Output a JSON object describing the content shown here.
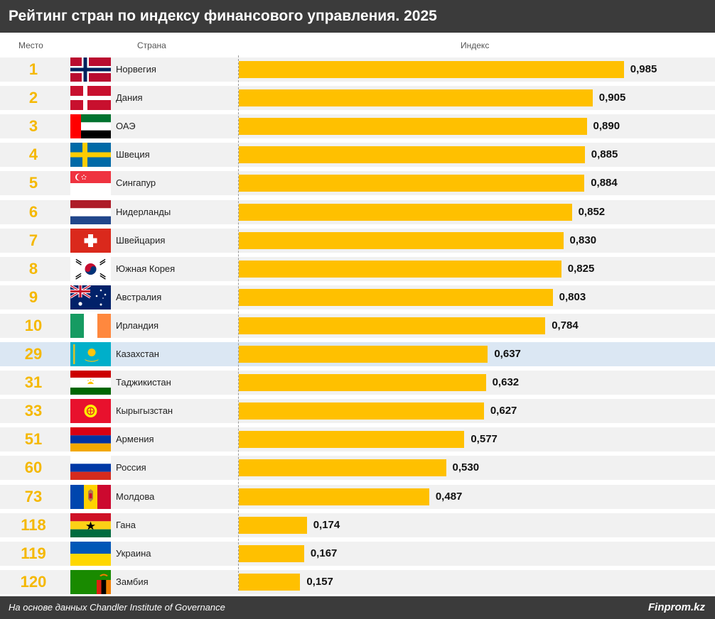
{
  "header": {
    "title": "Рейтинг стран по индексу финансового управления. 2025"
  },
  "columns": {
    "rank": "Место",
    "country": "Страна",
    "index": "Индекс"
  },
  "footer": {
    "source": "На основе данных Chandler Institute of Governance",
    "brand": "Finprom.kz"
  },
  "colors": {
    "bar": "#ffc000",
    "rank": "#f5b800",
    "row": "#f1f1f1",
    "highlight_row": "#dbe7f3",
    "header": "#3b3b3b"
  },
  "chart_data": {
    "type": "bar",
    "orientation": "horizontal",
    "title": "Рейтинг стран по индексу финансового управления. 2025",
    "xlabel": "Индекс",
    "xlim": [
      0,
      1
    ],
    "highlight": "Казахстан",
    "rows": [
      {
        "rank": "1",
        "country": "Норвегия",
        "flag": "norway",
        "value": 0.985,
        "label": "0,985"
      },
      {
        "rank": "2",
        "country": "Дания",
        "flag": "denmark",
        "value": 0.905,
        "label": "0,905"
      },
      {
        "rank": "3",
        "country": "ОАЭ",
        "flag": "uae",
        "value": 0.89,
        "label": "0,890"
      },
      {
        "rank": "4",
        "country": "Швеция",
        "flag": "sweden",
        "value": 0.885,
        "label": "0,885"
      },
      {
        "rank": "5",
        "country": "Сингапур",
        "flag": "singapore",
        "value": 0.884,
        "label": "0,884"
      },
      {
        "rank": "6",
        "country": "Нидерланды",
        "flag": "netherlands",
        "value": 0.852,
        "label": "0,852"
      },
      {
        "rank": "7",
        "country": "Швейцария",
        "flag": "switzerland",
        "value": 0.83,
        "label": "0,830"
      },
      {
        "rank": "8",
        "country": "Южная Корея",
        "flag": "south-korea",
        "value": 0.825,
        "label": "0,825"
      },
      {
        "rank": "9",
        "country": "Австралия",
        "flag": "australia",
        "value": 0.803,
        "label": "0,803"
      },
      {
        "rank": "10",
        "country": "Ирландия",
        "flag": "ireland",
        "value": 0.784,
        "label": "0,784"
      },
      {
        "rank": "29",
        "country": "Казахстан",
        "flag": "kazakhstan",
        "value": 0.637,
        "label": "0,637"
      },
      {
        "rank": "31",
        "country": "Таджикистан",
        "flag": "tajikistan",
        "value": 0.632,
        "label": "0,632"
      },
      {
        "rank": "33",
        "country": "Кырыгызстан",
        "flag": "kyrgyzstan",
        "value": 0.627,
        "label": "0,627"
      },
      {
        "rank": "51",
        "country": "Армения",
        "flag": "armenia",
        "value": 0.577,
        "label": "0,577"
      },
      {
        "rank": "60",
        "country": "Россия",
        "flag": "russia",
        "value": 0.53,
        "label": "0,530"
      },
      {
        "rank": "73",
        "country": "Молдова",
        "flag": "moldova",
        "value": 0.487,
        "label": "0,487"
      },
      {
        "rank": "118",
        "country": "Гана",
        "flag": "ghana",
        "value": 0.174,
        "label": "0,174"
      },
      {
        "rank": "119",
        "country": "Украина",
        "flag": "ukraine",
        "value": 0.167,
        "label": "0,167"
      },
      {
        "rank": "120",
        "country": "Замбия",
        "flag": "zambia",
        "value": 0.157,
        "label": "0,157"
      }
    ]
  }
}
